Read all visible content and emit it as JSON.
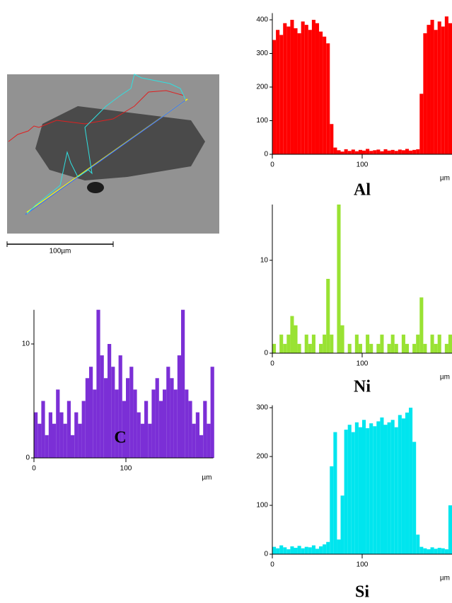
{
  "scale_bar": "100µm",
  "chart_data": [
    {
      "type": "bar",
      "title": "Al",
      "xlabel": "µm",
      "color": "#ff0000",
      "x": [
        0,
        4,
        8,
        12,
        16,
        20,
        24,
        28,
        32,
        36,
        40,
        44,
        48,
        52,
        56,
        60,
        64,
        68,
        72,
        76,
        80,
        84,
        88,
        92,
        96,
        100,
        104,
        108,
        112,
        116,
        120,
        124,
        128,
        132,
        136,
        140,
        144,
        148,
        152,
        156,
        160,
        164,
        168,
        172,
        176,
        180,
        184,
        188,
        192,
        196
      ],
      "values": [
        340,
        370,
        355,
        390,
        380,
        400,
        375,
        360,
        395,
        385,
        370,
        400,
        390,
        365,
        350,
        330,
        90,
        20,
        12,
        8,
        15,
        10,
        14,
        9,
        13,
        11,
        16,
        10,
        12,
        14,
        9,
        15,
        11,
        13,
        10,
        14,
        12,
        16,
        11,
        13,
        15,
        180,
        360,
        385,
        400,
        370,
        395,
        380,
        410,
        390
      ],
      "xlim": [
        0,
        200
      ],
      "ylim": [
        0,
        420
      ],
      "xticks": [
        0,
        100
      ],
      "yticks": [
        0,
        100,
        200,
        300,
        400
      ]
    },
    {
      "type": "bar",
      "title": "Ni",
      "xlabel": "µm",
      "color": "#99e233",
      "x": [
        0,
        4,
        8,
        12,
        16,
        20,
        24,
        28,
        32,
        36,
        40,
        44,
        48,
        52,
        56,
        60,
        64,
        68,
        72,
        76,
        80,
        84,
        88,
        92,
        96,
        100,
        104,
        108,
        112,
        116,
        120,
        124,
        128,
        132,
        136,
        140,
        144,
        148,
        152,
        156,
        160,
        164,
        168,
        172,
        176,
        180,
        184,
        188,
        192,
        196
      ],
      "values": [
        1,
        0,
        2,
        1,
        2,
        4,
        3,
        1,
        0,
        2,
        1,
        2,
        0,
        1,
        2,
        8,
        2,
        0,
        16,
        3,
        0,
        1,
        0,
        2,
        1,
        0,
        2,
        1,
        0,
        1,
        2,
        0,
        1,
        2,
        1,
        0,
        2,
        1,
        0,
        1,
        2,
        6,
        1,
        0,
        2,
        1,
        2,
        0,
        1,
        2
      ],
      "xlim": [
        0,
        200
      ],
      "ylim": [
        0,
        16
      ],
      "xticks": [
        0,
        100
      ],
      "yticks": [
        0,
        10
      ]
    },
    {
      "type": "bar",
      "title": "C",
      "xlabel": "µm",
      "color": "#7b2fd6",
      "x": [
        0,
        4,
        8,
        12,
        16,
        20,
        24,
        28,
        32,
        36,
        40,
        44,
        48,
        52,
        56,
        60,
        64,
        68,
        72,
        76,
        80,
        84,
        88,
        92,
        96,
        100,
        104,
        108,
        112,
        116,
        120,
        124,
        128,
        132,
        136,
        140,
        144,
        148,
        152,
        156,
        160,
        164,
        168,
        172,
        176,
        180,
        184,
        188,
        192
      ],
      "values": [
        4,
        3,
        5,
        2,
        4,
        3,
        6,
        4,
        3,
        5,
        2,
        4,
        3,
        5,
        7,
        8,
        6,
        13,
        9,
        7,
        10,
        8,
        6,
        9,
        5,
        7,
        8,
        6,
        4,
        3,
        5,
        3,
        6,
        7,
        5,
        6,
        8,
        7,
        6,
        9,
        13,
        6,
        5,
        3,
        4,
        2,
        5,
        3,
        8
      ],
      "xlim": [
        0,
        195
      ],
      "ylim": [
        0,
        13
      ],
      "xticks": [
        0,
        100
      ],
      "yticks": [
        0,
        10
      ]
    },
    {
      "type": "bar",
      "title": "Si",
      "xlabel": "µm",
      "color": "#00e5ee",
      "x": [
        0,
        4,
        8,
        12,
        16,
        20,
        24,
        28,
        32,
        36,
        40,
        44,
        48,
        52,
        56,
        60,
        64,
        68,
        72,
        76,
        80,
        84,
        88,
        92,
        96,
        100,
        104,
        108,
        112,
        116,
        120,
        124,
        128,
        132,
        136,
        140,
        144,
        148,
        152,
        156,
        160,
        164,
        168,
        172,
        176,
        180,
        184,
        188,
        192,
        196
      ],
      "values": [
        15,
        12,
        18,
        14,
        10,
        16,
        13,
        17,
        12,
        15,
        14,
        18,
        11,
        16,
        20,
        25,
        180,
        250,
        30,
        120,
        255,
        265,
        250,
        270,
        260,
        275,
        258,
        268,
        262,
        272,
        280,
        265,
        270,
        275,
        260,
        285,
        278,
        290,
        300,
        230,
        40,
        15,
        12,
        10,
        14,
        11,
        13,
        12,
        10,
        100
      ],
      "xlim": [
        0,
        200
      ],
      "ylim": [
        0,
        305
      ],
      "xticks": [
        0,
        100
      ],
      "yticks": [
        0,
        100,
        200,
        300
      ]
    }
  ]
}
